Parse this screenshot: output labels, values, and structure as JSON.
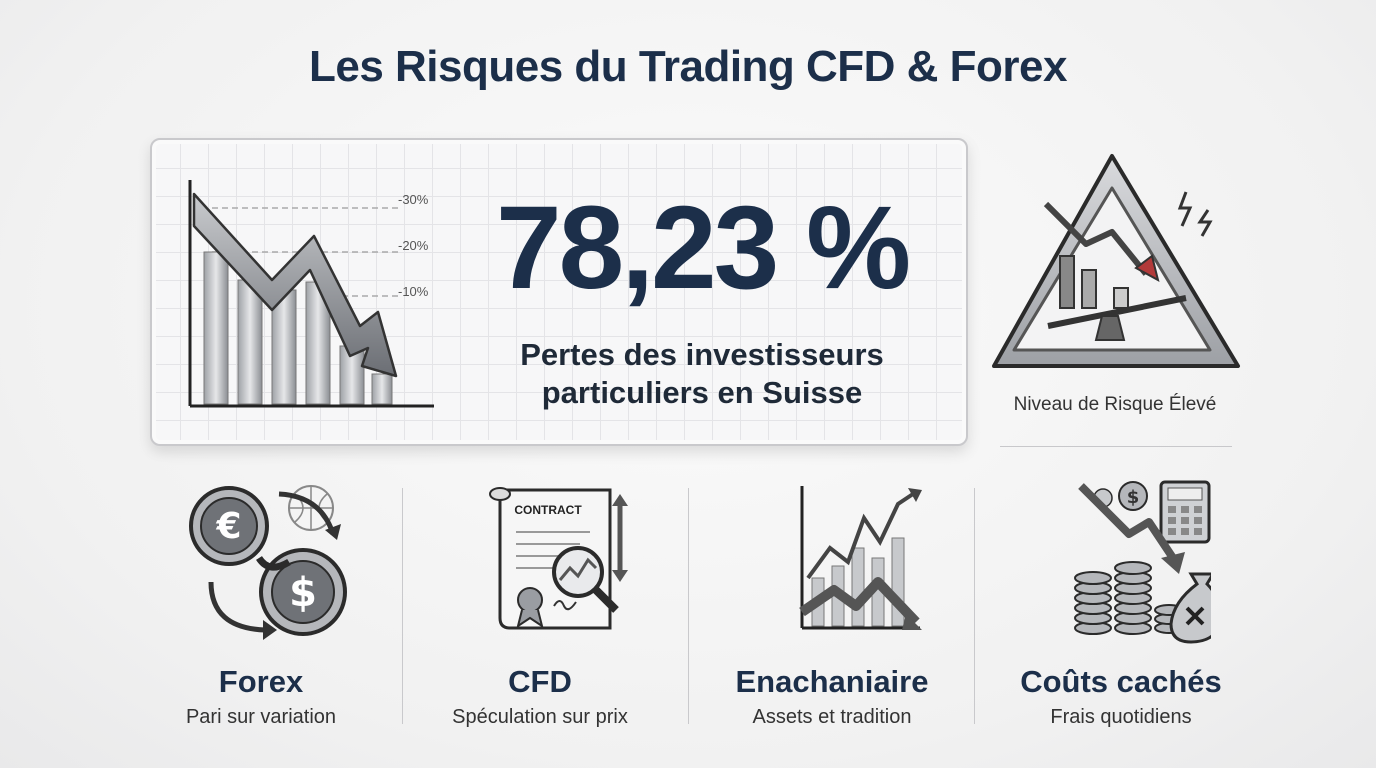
{
  "title": "Les Risques du Trading CFD & Forex",
  "hero": {
    "percentage": "78,23 %",
    "subtitle_line1": "Pertes des investisseurs",
    "subtitle_line2": "particuliers en Suisse",
    "ticks": [
      "-30%",
      "-20%",
      "-10%"
    ]
  },
  "risk": {
    "label": "Niveau de Risque Élevé",
    "icon": "warning-triangle-icon"
  },
  "categories": [
    {
      "title": "Forex",
      "subtitle": "Pari sur variation",
      "icon": "currency-exchange-icon"
    },
    {
      "title": "CFD",
      "subtitle": "Spéculation sur prix",
      "icon": "contract-icon",
      "icon_text": "CONTRACT"
    },
    {
      "title": "Enachaniaire",
      "subtitle": "Assets et tradition",
      "icon": "volatile-chart-icon"
    },
    {
      "title": "Coûts cachés",
      "subtitle": "Frais quotidiens",
      "icon": "money-fees-icon"
    }
  ],
  "colors": {
    "navy": "#1c2f4a",
    "grey": "#8a8d93",
    "accent_red": "#b23a3a"
  }
}
